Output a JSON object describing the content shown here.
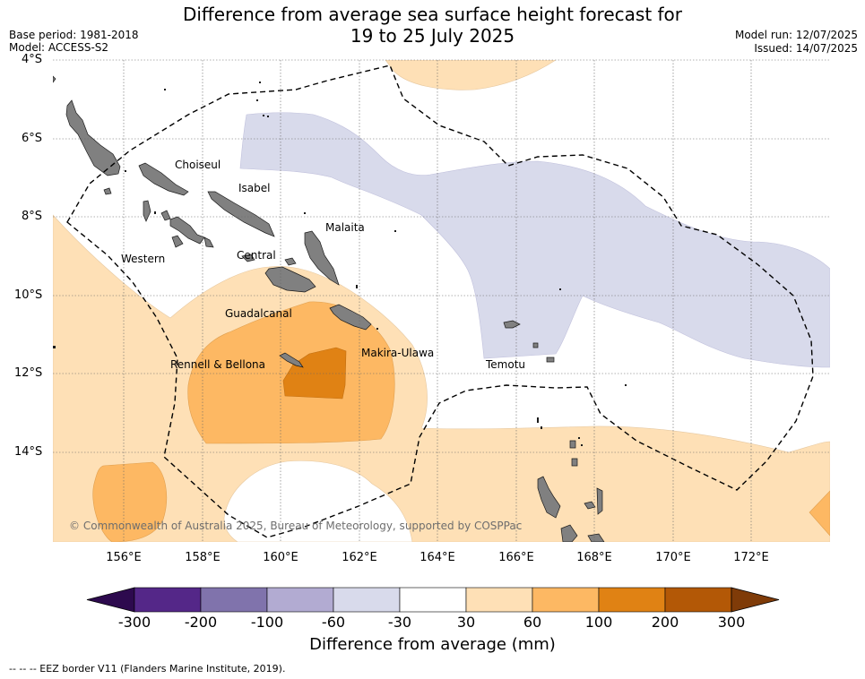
{
  "title_line1": "Difference from average sea surface height forecast for",
  "title_line2": "19 to 25 July 2025",
  "base_period": "Base period: 1981-2018",
  "model": "Model: ACCESS-S2",
  "model_run": "Model run: 12/07/2025",
  "issued": "Issued: 14/07/2025",
  "map": {
    "lon_range": [
      154.2,
      174.0
    ],
    "lat_range": [
      -16.0,
      -4.0
    ],
    "y_ticks": [
      "4°S",
      "6°S",
      "8°S",
      "10°S",
      "12°S",
      "14°S"
    ],
    "x_ticks": [
      "156°E",
      "158°E",
      "160°E",
      "162°E",
      "164°E",
      "166°E",
      "168°E",
      "170°E",
      "172°E"
    ],
    "regions": [
      "Choiseul",
      "Isabel",
      "Malaita",
      "Western",
      "Central",
      "Guadalcanal",
      "Makira-Ulawa",
      "Rennell & Bellona",
      "Temotu"
    ],
    "copyright": "© Commonwealth of Australia 2025, Bureau of Meteorology, supported by COSPPac",
    "land_color": "#808080",
    "eez_style": "dashed black"
  },
  "colorbar": {
    "label": "Difference from average (mm)",
    "ticks": [
      "-300",
      "-200",
      "-100",
      "-60",
      "-30",
      "30",
      "60",
      "100",
      "200",
      "300"
    ],
    "colors": [
      "#2d0a4e",
      "#542788",
      "#8073ac",
      "#b2abd2",
      "#d8daeb",
      "#ffffff",
      "#fee0b6",
      "#fdb863",
      "#e08214",
      "#b35806",
      "#7f3b08"
    ]
  },
  "footer": "--  --  -- EEZ border V11 (Flanders Marine Institute, 2019)."
}
